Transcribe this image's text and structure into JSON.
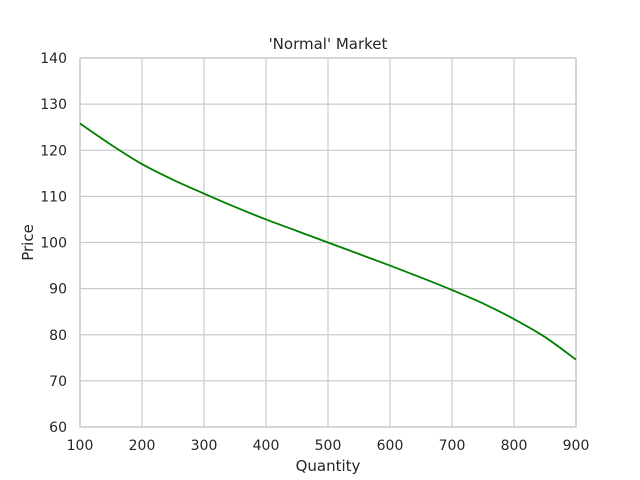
{
  "chart_data": {
    "type": "line",
    "title": "'Normal' Market",
    "xlabel": "Quantity",
    "ylabel": "Price",
    "xlim": [
      100,
      900
    ],
    "ylim": [
      60,
      140
    ],
    "xticks": [
      100,
      200,
      300,
      400,
      500,
      600,
      700,
      800,
      900
    ],
    "yticks": [
      60,
      70,
      80,
      90,
      100,
      110,
      120,
      130,
      140
    ],
    "xtick_labels": [
      "100",
      "200",
      "300",
      "400",
      "500",
      "600",
      "700",
      "800",
      "900"
    ],
    "ytick_labels": [
      "60",
      "70",
      "80",
      "90",
      "100",
      "110",
      "120",
      "130",
      "140"
    ],
    "grid": true,
    "line_color": "#008000",
    "grid_color": "#cccccc",
    "series": [
      {
        "x": [
          100,
          150,
          200,
          250,
          300,
          350,
          400,
          450,
          500,
          550,
          600,
          650,
          700,
          750,
          800,
          850,
          900
        ],
        "y": [
          125.8,
          121.2,
          117.0,
          113.6,
          110.6,
          107.7,
          105.0,
          102.5,
          100.0,
          97.5,
          95.0,
          92.4,
          89.7,
          86.8,
          83.4,
          79.5,
          74.6
        ]
      }
    ]
  }
}
